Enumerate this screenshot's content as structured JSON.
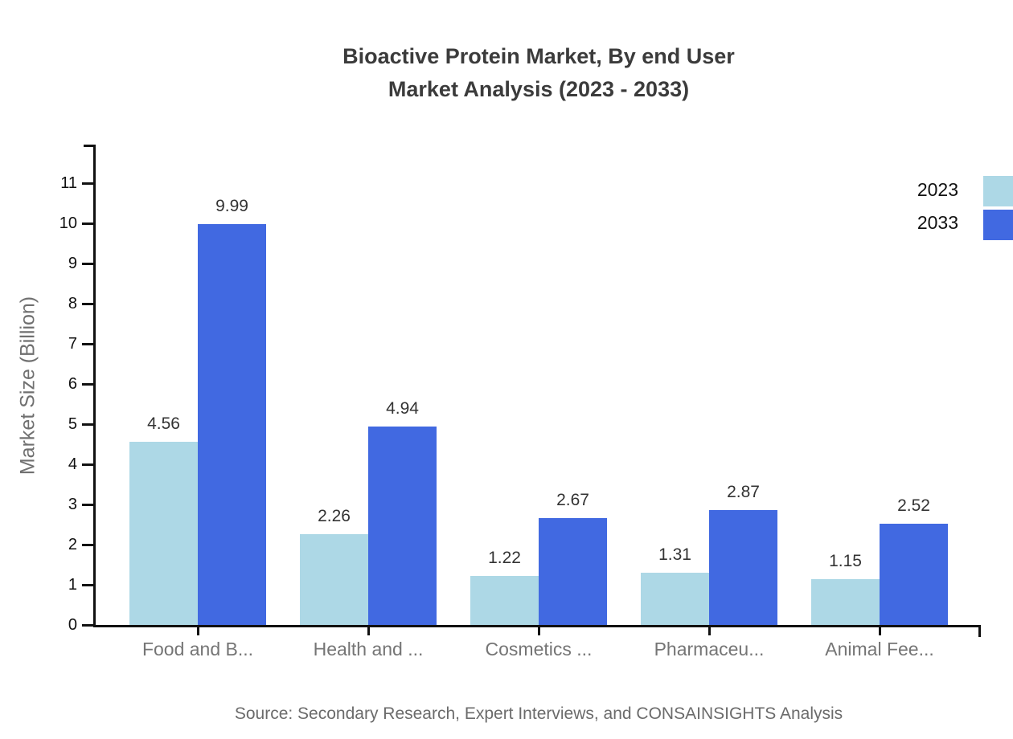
{
  "header": {
    "title_line1": "Bioactive Protein Market, By end User",
    "title_line2": "Market Analysis (2023 - 2033)"
  },
  "footer": {
    "source": "Source: Secondary Research, Expert Interviews, and CONSAINSIGHTS Analysis"
  },
  "chart_data": {
    "type": "bar",
    "title": "Bioactive Protein Market, By end User Market Analysis (2023 - 2033)",
    "categories": [
      "Food and B...",
      "Health and ...",
      "Cosmetics ...",
      "Pharmaceu...",
      "Animal Fee..."
    ],
    "series": [
      {
        "name": "2023",
        "color": "#ADD8E6",
        "values": [
          4.56,
          2.26,
          1.22,
          1.31,
          1.15
        ]
      },
      {
        "name": "2033",
        "color": "#4169E1",
        "values": [
          9.99,
          4.94,
          2.67,
          2.87,
          2.52
        ]
      }
    ],
    "xlabel": "",
    "ylabel": "Market Size (Billion)",
    "ylim": [
      0,
      12
    ],
    "yticks": [
      0,
      1,
      2,
      3,
      4,
      5,
      6,
      7,
      8,
      9,
      10,
      11
    ],
    "grid": false,
    "legend_position": "top-right",
    "data_labels": true,
    "axis_color": "#111111"
  }
}
